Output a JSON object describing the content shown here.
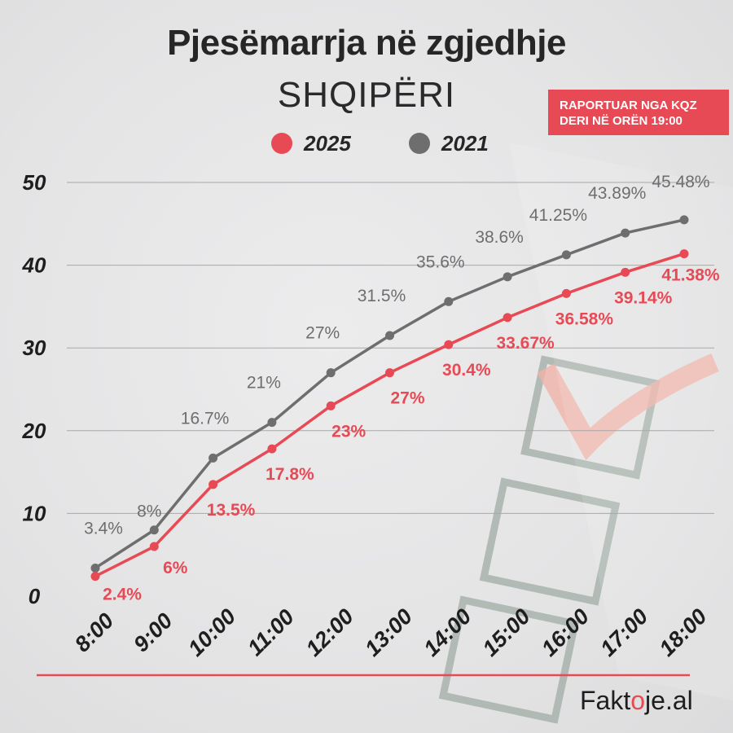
{
  "title": "Pjesëmarrja në zgjedhje",
  "subtitle": "SHQIPËRI",
  "badge": {
    "line1": "RAPORTUAR NGA KQZ",
    "line2": "DERI NË ORËN 19:00"
  },
  "brand": {
    "before": "Fakt",
    "mark": "o",
    "after": "je.al"
  },
  "colors": {
    "series_2025": "#e84a55",
    "series_2021": "#6e6e6e",
    "grid": "#a8a8a8",
    "baseline": "#e84a55"
  },
  "chart_data": {
    "type": "line",
    "categories": [
      "8:00",
      "9:00",
      "10:00",
      "11:00",
      "12:00",
      "13:00",
      "14:00",
      "15:00",
      "16:00",
      "17:00",
      "18:00"
    ],
    "series": [
      {
        "name": "2025",
        "values": [
          2.4,
          6,
          13.5,
          17.8,
          23,
          27,
          30.4,
          33.67,
          36.58,
          39.14,
          41.38
        ],
        "labels": [
          "2.4%",
          "6%",
          "13.5%",
          "17.8%",
          "23%",
          "27%",
          "30.4%",
          "33.67%",
          "36.58%",
          "39.14%",
          "41.38%"
        ]
      },
      {
        "name": "2021",
        "values": [
          3.4,
          8,
          16.7,
          21,
          27,
          31.5,
          35.6,
          38.6,
          41.25,
          43.89,
          45.48
        ],
        "labels": [
          "3.4%",
          "8%",
          "16.7%",
          "21%",
          "27%",
          "31.5%",
          "35.6%",
          "38.6%",
          "41.25%",
          "43.89%",
          "45.48%"
        ]
      }
    ],
    "yticks": [
      "0",
      "10",
      "20",
      "30",
      "40",
      "50"
    ],
    "ylim": [
      0,
      50
    ],
    "grid": true,
    "legend": "top-center"
  }
}
